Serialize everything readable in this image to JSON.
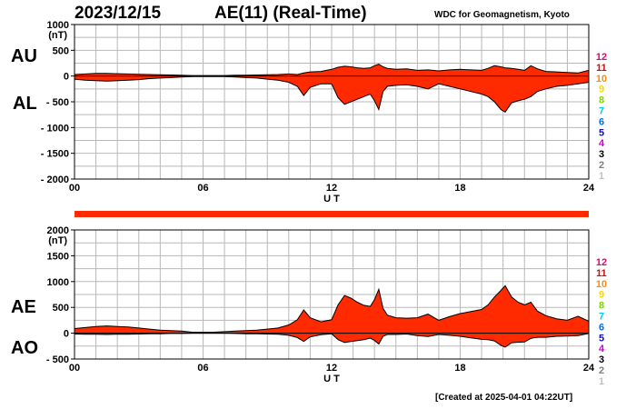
{
  "header": {
    "date": "2023/12/15",
    "title": "AE(11) (Real-Time)",
    "source": "WDC for Geomagnetism, Kyoto"
  },
  "footer": {
    "created": "[Created at 2025-04-01 04:22UT]"
  },
  "legend": {
    "items": [
      {
        "label": "12",
        "color": "#e6007e"
      },
      {
        "label": "11",
        "color": "#e60000"
      },
      {
        "label": "10",
        "color": "#ff8c00"
      },
      {
        "label": "9",
        "color": "#ffd700"
      },
      {
        "label": "8",
        "color": "#7fd600"
      },
      {
        "label": "7",
        "color": "#00c8ff"
      },
      {
        "label": "6",
        "color": "#0070e0"
      },
      {
        "label": "5",
        "color": "#1010b0"
      },
      {
        "label": "4",
        "color": "#d000d0"
      },
      {
        "label": "3",
        "color": "#000000"
      },
      {
        "label": "2",
        "color": "#808080"
      },
      {
        "label": "1",
        "color": "#c0c0c0"
      }
    ]
  },
  "chart_data": [
    {
      "type": "area",
      "panel": "AU/AL",
      "label_upper": "AU",
      "label_lower": "AL",
      "unit": "(nT)",
      "xlabel": "U T",
      "xlim": [
        0,
        24
      ],
      "ylim": [
        -2000,
        1000
      ],
      "yticks": [
        1000,
        500,
        0,
        -500,
        -1000,
        -1500,
        -2000
      ],
      "yticklabels": [
        "1000",
        "500",
        "0",
        "- 500",
        "- 1000",
        "- 1500",
        "- 2000"
      ],
      "xticks": [
        0,
        6,
        12,
        18,
        24
      ],
      "xticklabels": [
        "00",
        "06",
        "12",
        "18",
        "24"
      ],
      "fill": "#ff2a00",
      "x": [
        0,
        0.5,
        1,
        1.5,
        2,
        2.5,
        3,
        3.5,
        4,
        4.5,
        5,
        5.5,
        6,
        6.5,
        7,
        7.5,
        8,
        8.5,
        9,
        9.5,
        10,
        10.4,
        10.7,
        11,
        11.5,
        12,
        12.3,
        12.6,
        12.9,
        13.2,
        13.5,
        13.8,
        14,
        14.2,
        14.4,
        14.6,
        15,
        15.5,
        16,
        16.5,
        17,
        17.5,
        18,
        18.5,
        19,
        19.3,
        19.6,
        19.9,
        20.1,
        20.4,
        20.7,
        21,
        21.3,
        21.6,
        22,
        22.5,
        23,
        23.5,
        24
      ],
      "upper": [
        30,
        40,
        50,
        50,
        45,
        40,
        35,
        30,
        25,
        20,
        15,
        10,
        10,
        10,
        10,
        15,
        15,
        20,
        25,
        30,
        40,
        30,
        60,
        80,
        90,
        130,
        170,
        190,
        180,
        160,
        150,
        160,
        200,
        230,
        180,
        150,
        130,
        140,
        110,
        120,
        100,
        120,
        130,
        120,
        110,
        150,
        200,
        180,
        160,
        150,
        130,
        110,
        200,
        140,
        90,
        80,
        70,
        60,
        110
      ],
      "lower": [
        -60,
        -80,
        -90,
        -100,
        -90,
        -80,
        -70,
        -50,
        -40,
        -30,
        -20,
        -10,
        -10,
        -10,
        -10,
        -20,
        -30,
        -40,
        -60,
        -80,
        -120,
        -200,
        -380,
        -220,
        -150,
        -150,
        -420,
        -550,
        -500,
        -450,
        -400,
        -350,
        -480,
        -650,
        -300,
        -200,
        -180,
        -170,
        -200,
        -250,
        -150,
        -200,
        -250,
        -300,
        -350,
        -400,
        -500,
        -650,
        -700,
        -520,
        -480,
        -450,
        -400,
        -300,
        -250,
        -200,
        -180,
        -150,
        -120
      ]
    },
    {
      "type": "area",
      "panel": "AE/AO",
      "label_upper": "AE",
      "label_lower": "AO",
      "unit": "(nT)",
      "xlabel": "U T",
      "xlim": [
        0,
        24
      ],
      "ylim": [
        -500,
        2000
      ],
      "yticks": [
        2000,
        1500,
        1000,
        500,
        0,
        -500
      ],
      "yticklabels": [
        "2000",
        "1500",
        "1000",
        "500",
        "0",
        "- 500"
      ],
      "xticks": [
        0,
        6,
        12,
        18,
        24
      ],
      "xticklabels": [
        "00",
        "06",
        "12",
        "18",
        "24"
      ],
      "fill": "#ff2a00",
      "x": [
        0,
        0.5,
        1,
        1.5,
        2,
        2.5,
        3,
        3.5,
        4,
        4.5,
        5,
        5.5,
        6,
        6.5,
        7,
        7.5,
        8,
        8.5,
        9,
        9.5,
        10,
        10.4,
        10.7,
        11,
        11.5,
        12,
        12.3,
        12.6,
        12.9,
        13.2,
        13.5,
        13.8,
        14,
        14.2,
        14.4,
        14.6,
        15,
        15.5,
        16,
        16.5,
        17,
        17.5,
        18,
        18.5,
        19,
        19.3,
        19.6,
        19.9,
        20.1,
        20.4,
        20.7,
        21,
        21.3,
        21.6,
        22,
        22.5,
        23,
        23.5,
        24
      ],
      "upper": [
        90,
        110,
        130,
        140,
        130,
        120,
        100,
        80,
        60,
        50,
        40,
        20,
        20,
        20,
        30,
        40,
        50,
        60,
        80,
        100,
        160,
        260,
        450,
        300,
        220,
        260,
        550,
        730,
        680,
        600,
        540,
        520,
        650,
        850,
        480,
        350,
        300,
        290,
        300,
        370,
        250,
        320,
        380,
        420,
        460,
        550,
        700,
        830,
        920,
        700,
        600,
        550,
        600,
        430,
        340,
        280,
        250,
        330,
        230
      ],
      "lower": [
        -15,
        -20,
        -20,
        -25,
        -20,
        -20,
        -15,
        -10,
        -10,
        -5,
        -5,
        0,
        0,
        0,
        0,
        -5,
        -10,
        -10,
        -15,
        -20,
        -40,
        -85,
        -160,
        -70,
        -30,
        -10,
        -125,
        -180,
        -160,
        -145,
        -125,
        -95,
        -140,
        -210,
        -60,
        -25,
        -25,
        -15,
        -45,
        -65,
        -25,
        -40,
        -60,
        -90,
        -120,
        -125,
        -150,
        -235,
        -270,
        -185,
        -175,
        -170,
        -100,
        -80,
        -80,
        -60,
        -55,
        -45,
        -5
      ]
    }
  ]
}
